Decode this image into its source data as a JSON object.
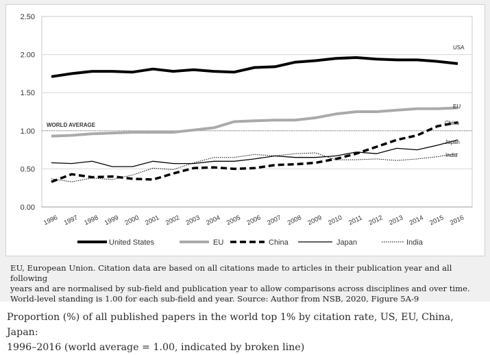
{
  "chart_data": {
    "type": "line",
    "x": [
      "1996",
      "1997",
      "1998",
      "1999",
      "2000",
      "2001",
      "2002",
      "2003",
      "2004",
      "2005",
      "2006",
      "2007",
      "2008",
      "2009",
      "2010",
      "2011",
      "2012",
      "2013",
      "2014",
      "2015",
      "2016"
    ],
    "ylim": [
      0,
      2.5
    ],
    "yticks": [
      "0.00",
      "0.50",
      "1.00",
      "1.50",
      "2.00",
      "2.50"
    ],
    "grid": true,
    "legend_position": "bottom",
    "reference_line": {
      "value": 1.0,
      "label": "WORLD AVERAGE",
      "color": "#888888"
    },
    "series": [
      {
        "name": "United States",
        "label": "USA",
        "color": "#000000",
        "style": "thick-solid",
        "values": [
          1.71,
          1.75,
          1.78,
          1.78,
          1.77,
          1.81,
          1.78,
          1.8,
          1.78,
          1.77,
          1.83,
          1.84,
          1.9,
          1.92,
          1.95,
          1.96,
          1.94,
          1.93,
          1.93,
          1.91,
          1.88
        ]
      },
      {
        "name": "EU",
        "label": "EU",
        "color": "#aaaaaa",
        "style": "thick-solid",
        "values": [
          0.93,
          0.94,
          0.96,
          0.97,
          0.98,
          0.98,
          0.98,
          1.01,
          1.04,
          1.12,
          1.13,
          1.14,
          1.14,
          1.17,
          1.22,
          1.25,
          1.25,
          1.27,
          1.29,
          1.29,
          1.3
        ]
      },
      {
        "name": "China",
        "label": "China",
        "color": "#000000",
        "style": "thick-dashed",
        "values": [
          0.33,
          0.43,
          0.39,
          0.4,
          0.37,
          0.36,
          0.44,
          0.51,
          0.52,
          0.5,
          0.51,
          0.55,
          0.56,
          0.58,
          0.63,
          0.7,
          0.79,
          0.88,
          0.94,
          1.06,
          1.11
        ]
      },
      {
        "name": "Japan",
        "label": "Japan",
        "color": "#000000",
        "style": "thin-solid",
        "values": [
          0.58,
          0.57,
          0.6,
          0.53,
          0.53,
          0.6,
          0.57,
          0.57,
          0.6,
          0.6,
          0.63,
          0.67,
          0.65,
          0.65,
          0.67,
          0.72,
          0.7,
          0.77,
          0.75,
          0.81,
          0.88
        ]
      },
      {
        "name": "India",
        "label": "India",
        "color": "#000000",
        "style": "thin-dotted",
        "values": [
          0.37,
          0.33,
          0.38,
          0.36,
          0.42,
          0.51,
          0.49,
          0.58,
          0.65,
          0.65,
          0.69,
          0.67,
          0.7,
          0.71,
          0.62,
          0.62,
          0.63,
          0.61,
          0.63,
          0.66,
          0.7
        ]
      }
    ]
  },
  "caption": {
    "line1": "EU, European Union. Citation data are based on all citations made to articles in their publication year and all following",
    "line2": "years and are normalised by sub-field and publication year to allow comparisons across disciplines and over time.",
    "line3": "World-level standing is 1.00 for each sub-field and year. Source: Author from NSB, 2020, Figure 5A-9"
  },
  "figure_title": {
    "line1": "Proportion (%) of all published papers in the world top 1% by citation rate, US, EU, China, Japan:",
    "line2": "1996–2016 (world average = 1.00, indicated by broken line)"
  }
}
